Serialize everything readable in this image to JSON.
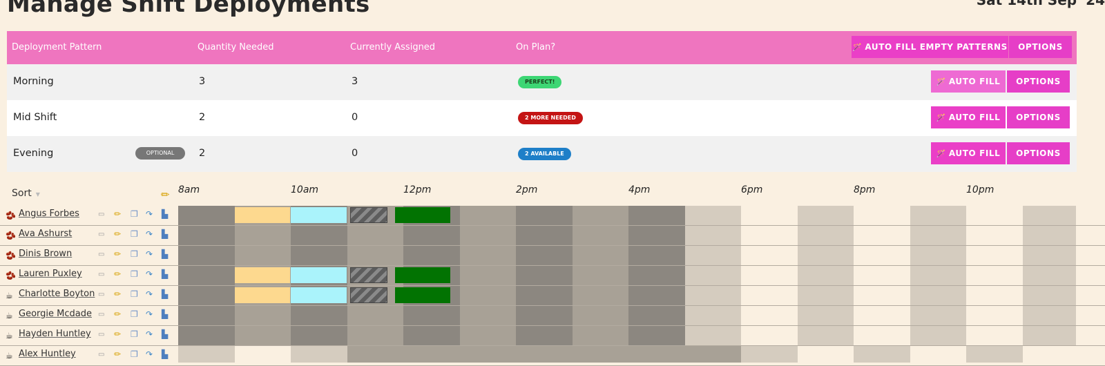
{
  "page": {
    "title": "Manage Shift Deployments",
    "date": "Sat 14th Sep '24"
  },
  "deployments": {
    "headers": {
      "pattern": "Deployment Pattern",
      "quantity": "Quantity Needed",
      "assigned": "Currently Assigned",
      "on_plan": "On Plan?"
    },
    "auto_fill_empty_label": "AUTO FILL EMPTY PATTERNS",
    "options_label": "OPTIONS",
    "rows": [
      {
        "name": "Morning",
        "tag": "",
        "quantity": "3",
        "assigned": "3",
        "status": "PERFECT!",
        "status_color": "#3dd674",
        "status_text_color": "#1a3d1a",
        "auto_fill": "AUTO FILL",
        "options": "OPTIONS"
      },
      {
        "name": "Mid Shift",
        "tag": "",
        "quantity": "2",
        "assigned": "0",
        "status": "2 MORE NEEDED",
        "status_color": "#c41414",
        "status_text_color": "#ffffff",
        "auto_fill": "AUTO FILL",
        "options": "OPTIONS"
      },
      {
        "name": "Evening",
        "tag": "OPTIONAL",
        "quantity": "2",
        "assigned": "0",
        "status": "2 AVAILABLE",
        "status_color": "#1e7fc8",
        "status_text_color": "#ffffff",
        "auto_fill": "AUTO FILL",
        "options": "OPTIONS"
      }
    ]
  },
  "schedule": {
    "sort_label": "Sort",
    "times": [
      "8am",
      "10am",
      "12pm",
      "2pm",
      "4pm",
      "6pm",
      "8pm",
      "10pm"
    ],
    "colors": {
      "dark": "#8c8780",
      "mid": "#a8a196",
      "light": "#d5ccbf",
      "break_early": "#fdd98f",
      "break_late": "#aaf3fb",
      "unavailable_hatch": "#5d5d5d",
      "shift": "#027302",
      "accent": "#ef75bf"
    },
    "employees": [
      {
        "name": "Angus Forbes",
        "icon": "coffee-beans-icon",
        "assigned": true,
        "off": false
      },
      {
        "name": "Ava Ashurst",
        "icon": "coffee-beans-icon",
        "assigned": false,
        "off": false
      },
      {
        "name": "Dinis Brown",
        "icon": "coffee-beans-icon",
        "assigned": false,
        "off": false
      },
      {
        "name": "Lauren Puxley",
        "icon": "coffee-beans-icon",
        "assigned": true,
        "off": false
      },
      {
        "name": "Charlotte Boyton",
        "icon": "coffee-cup-icon",
        "assigned": true,
        "off": false
      },
      {
        "name": "Georgie Mcdade",
        "icon": "coffee-cup-icon",
        "assigned": false,
        "off": false
      },
      {
        "name": "Hayden Huntley",
        "icon": "coffee-cup-icon",
        "assigned": false,
        "off": false
      },
      {
        "name": "Alex Huntley",
        "icon": "coffee-cup-icon",
        "assigned": false,
        "off": true
      }
    ]
  }
}
